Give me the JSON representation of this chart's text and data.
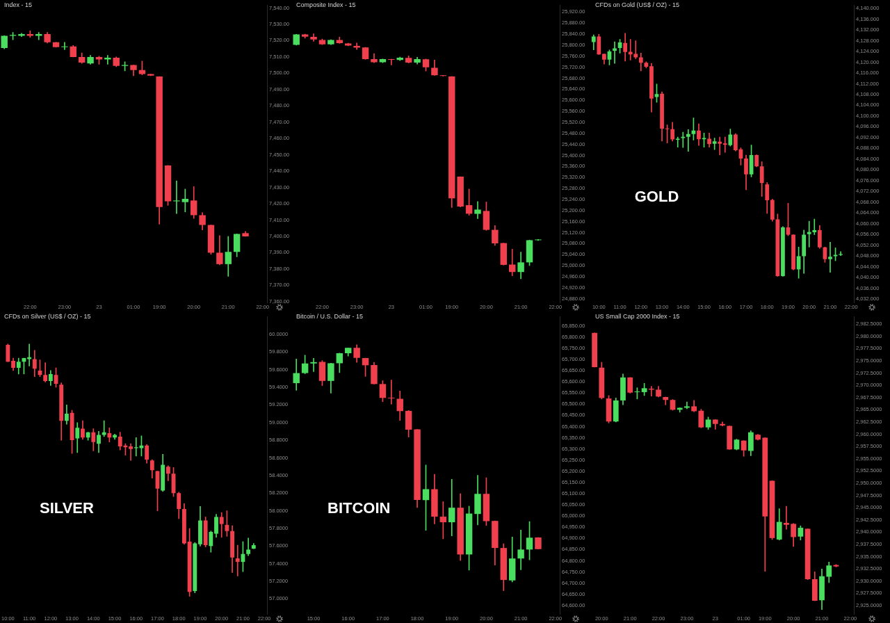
{
  "chart_data": [
    {
      "type": "candlestick",
      "title": "Index - 15",
      "categories": [
        null,
        null,
        null,
        "22:00",
        null,
        null,
        null,
        "23:00",
        null,
        null,
        null,
        "23",
        null,
        null,
        null,
        "01:00",
        null,
        null,
        "19:00",
        null,
        null,
        null,
        "20:00",
        null,
        null,
        null,
        "21:00",
        null,
        null,
        null,
        "22:00"
      ],
      "ohlc": [
        [
          7515.5,
          7523,
          7515,
          7523
        ],
        [
          7523,
          7525,
          7520.5,
          7523.5
        ],
        [
          7523,
          7524.5,
          7522.5,
          7524
        ],
        [
          7524,
          7526,
          7522,
          7523
        ],
        [
          7523,
          7525,
          7520.5,
          7524
        ],
        [
          7524,
          7525,
          7518.5,
          7519
        ],
        [
          7519,
          7519,
          7516,
          7516
        ],
        [
          7516,
          7519,
          7514.5,
          7516.5
        ],
        [
          7516.5,
          7517,
          7510,
          7510
        ],
        [
          7510,
          7512.5,
          7506,
          7506.5
        ],
        [
          7506,
          7511,
          7505.5,
          7510
        ],
        [
          7510,
          7510.5,
          7505.5,
          7508.5
        ],
        [
          7508.5,
          7511,
          7505.5,
          7509.5
        ],
        [
          7509.5,
          7510,
          7504,
          7504.5
        ],
        [
          7504.5,
          7507,
          7501.5,
          7505
        ],
        [
          7505,
          7505,
          7498.5,
          7502
        ],
        [
          7502,
          7507.5,
          7499,
          7499.5
        ],
        [
          7499.5,
          7499.5,
          7498.5,
          7498.5
        ],
        [
          7498,
          7498,
          7407.5,
          7418
        ],
        [
          7443.5,
          7443.5,
          7419,
          7421.5
        ],
        [
          7421.5,
          7434,
          7414,
          7422
        ],
        [
          7421,
          7429,
          7415,
          7423
        ],
        [
          7422,
          7430.5,
          7411,
          7413
        ],
        [
          7413,
          7414.5,
          7404,
          7407
        ],
        [
          7407,
          7407,
          7389,
          7390
        ],
        [
          7390,
          7400.5,
          7382.5,
          7383
        ],
        [
          7383,
          7400,
          7375.5,
          7390.5
        ],
        [
          7390.5,
          7401.5,
          7387.5,
          7401.5
        ],
        [
          7402,
          7403,
          7400,
          7400
        ],
        null,
        null
      ],
      "colors": [
        "#4bdd5f",
        "#4bdd5f",
        "#4bdd5f",
        "#f0404e",
        "#4bdd5f",
        "#f0404e",
        "#f0404e",
        "#4bdd5f",
        "#f0404e",
        "#f0404e",
        "#4bdd5f",
        "#f0404e",
        "#4bdd5f",
        "#f0404e",
        "#4bdd5f",
        "#f0404e",
        "#f0404e",
        "#f0404e",
        "#f0404e",
        "#f0404e",
        "#4bdd5f",
        "#4bdd5f",
        "#f0404e",
        "#f0404e",
        "#f0404e",
        "#f0404e",
        "#4bdd5f",
        "#4bdd5f",
        "#f0404e",
        null,
        null
      ],
      "ylim": [
        7359.5,
        7541.7
      ],
      "yticks": [
        {
          "value": 7360,
          "label": "7,360.00"
        },
        {
          "value": 7370,
          "label": "7,370.00"
        },
        {
          "value": 7380,
          "label": "7,380.00"
        },
        {
          "value": 7390,
          "label": "7,390.00"
        },
        {
          "value": 7400,
          "label": "7,400.00"
        },
        {
          "value": 7410,
          "label": "7,410.00"
        },
        {
          "value": 7420,
          "label": "7,420.00"
        },
        {
          "value": 7430,
          "label": "7,430.00"
        },
        {
          "value": 7440,
          "label": "7,440.00"
        },
        {
          "value": 7450,
          "label": "7,450.00"
        },
        {
          "value": 7460,
          "label": "7,460.00"
        },
        {
          "value": 7470,
          "label": "7,470.00"
        },
        {
          "value": 7480,
          "label": "7,480.00"
        },
        {
          "value": 7490,
          "label": "7,490.00"
        },
        {
          "value": 7500,
          "label": "7,500.00"
        },
        {
          "value": 7510,
          "label": "7,510.00"
        },
        {
          "value": 7520,
          "label": "7,520.00"
        },
        {
          "value": 7530,
          "label": "7,530.00"
        },
        {
          "value": 7540,
          "label": "7,540.00"
        }
      ]
    },
    {
      "type": "candlestick",
      "title": "Composite Index - 15",
      "categories": [
        null,
        null,
        null,
        "22:00",
        null,
        null,
        null,
        "23:00",
        null,
        null,
        null,
        "23",
        null,
        null,
        null,
        "01:00",
        null,
        null,
        "19:00",
        null,
        null,
        null,
        "20:00",
        null,
        null,
        null,
        "21:00",
        null,
        null,
        null,
        "22:00"
      ],
      "ohlc": [
        [
          25801,
          25839,
          25800,
          25839
        ],
        [
          25839,
          25840,
          25825,
          25830.5
        ],
        [
          25830,
          25841,
          25814,
          25820.5
        ],
        [
          25819,
          25822,
          25802,
          25803
        ],
        [
          25803,
          25820,
          25802,
          25819
        ],
        [
          25819,
          25829,
          25806,
          25807.5
        ],
        [
          25806,
          25807,
          25797.5,
          25798.5
        ],
        [
          25797.5,
          25808,
          25784,
          25791
        ],
        [
          25791.5,
          25792,
          25748,
          25749.5
        ],
        [
          25749.5,
          25769,
          25736,
          25738
        ],
        [
          25738,
          25750,
          25736,
          25749.5
        ],
        [
          25748,
          25749,
          25728,
          25747
        ],
        [
          25746,
          25757,
          25744,
          25754.5
        ],
        [
          25753.5,
          25761,
          25735,
          25737
        ],
        [
          25737,
          25756,
          25731,
          25749.5
        ],
        [
          25749,
          25750,
          25706,
          25719.5
        ],
        [
          25718,
          25746,
          25690,
          25690.5
        ],
        [
          25690,
          25690,
          25688,
          25688
        ],
        [
          25686.5,
          25687,
          25211,
          25244
        ],
        [
          25323,
          25323,
          25213,
          25214.5
        ],
        [
          25219.5,
          25278,
          25183,
          25188.5
        ],
        [
          25188,
          25232.5,
          25170.5,
          25203.5
        ],
        [
          25198.5,
          25231,
          25128,
          25130
        ],
        [
          25130,
          25145.5,
          25073.5,
          25081
        ],
        [
          25082,
          25082,
          25002,
          25003
        ],
        [
          25004,
          25060,
          24963.5,
          24977
        ],
        [
          24977,
          25049.5,
          24952.5,
          25012
        ],
        [
          25012,
          25093,
          25000.5,
          25092.5
        ],
        [
          25092.5,
          25095,
          25091,
          25094
        ],
        null,
        null
      ],
      "colors": [
        "#4bdd5f",
        "#f0404e",
        "#f0404e",
        "#f0404e",
        "#4bdd5f",
        "#f0404e",
        "#f0404e",
        "#f0404e",
        "#f0404e",
        "#f0404e",
        "#4bdd5f",
        "#f0404e",
        "#4bdd5f",
        "#f0404e",
        "#4bdd5f",
        "#f0404e",
        "#f0404e",
        "#f0404e",
        "#f0404e",
        "#f0404e",
        "#f0404e",
        "#4bdd5f",
        "#f0404e",
        "#f0404e",
        "#f0404e",
        "#f0404e",
        "#4bdd5f",
        "#4bdd5f",
        "#4bdd5f",
        null,
        null
      ],
      "ylim": [
        24866.6,
        25944.8
      ],
      "yticks": [
        {
          "value": 24880,
          "label": "24,880.00"
        },
        {
          "value": 24920,
          "label": "24,920.00"
        },
        {
          "value": 24960,
          "label": "24,960.00"
        },
        {
          "value": 25000,
          "label": "25,000.00"
        },
        {
          "value": 25040,
          "label": "25,040.00"
        },
        {
          "value": 25080,
          "label": "25,080.00"
        },
        {
          "value": 25120,
          "label": "25,120.00"
        },
        {
          "value": 25160,
          "label": "25,160.00"
        },
        {
          "value": 25200,
          "label": "25,200.00"
        },
        {
          "value": 25240,
          "label": "25,240.00"
        },
        {
          "value": 25280,
          "label": "25,280.00"
        },
        {
          "value": 25320,
          "label": "25,320.00"
        },
        {
          "value": 25360,
          "label": "25,360.00"
        },
        {
          "value": 25400,
          "label": "25,400.00"
        },
        {
          "value": 25440,
          "label": "25,440.00"
        },
        {
          "value": 25480,
          "label": "25,480.00"
        },
        {
          "value": 25520,
          "label": "25,520.00"
        },
        {
          "value": 25560,
          "label": "25,560.00"
        },
        {
          "value": 25600,
          "label": "25,600.00"
        },
        {
          "value": 25640,
          "label": "25,640.00"
        },
        {
          "value": 25680,
          "label": "25,680.00"
        },
        {
          "value": 25720,
          "label": "25,720.00"
        },
        {
          "value": 25760,
          "label": "25,760.00"
        },
        {
          "value": 25800,
          "label": "25,800.00"
        },
        {
          "value": 25840,
          "label": "25,840.00"
        },
        {
          "value": 25880,
          "label": "25,880.00"
        },
        {
          "value": 25920,
          "label": "25,920.00"
        }
      ]
    },
    {
      "type": "candlestick",
      "title": "CFDs on Gold (US$ / OZ) - 15",
      "annotations": [
        "GOLD"
      ],
      "categories": [
        null,
        "10:00",
        null,
        null,
        null,
        "11:00",
        null,
        null,
        null,
        "12:00",
        null,
        null,
        null,
        "13:00",
        null,
        null,
        null,
        "14:00",
        null,
        null,
        null,
        "15:00",
        null,
        null,
        null,
        "16:00",
        null,
        null,
        null,
        "17:00",
        null,
        null,
        null,
        "18:00",
        null,
        null,
        null,
        "19:00",
        null,
        null,
        null,
        "20:00",
        null,
        null,
        null,
        "21:00",
        null,
        null,
        null,
        "22:00"
      ],
      "ohlc": [
        [
          4127.5,
          4130.2,
          4124.6,
          4129.6
        ],
        [
          4129.6,
          4130.4,
          4122.9,
          4122.9
        ],
        [
          4123.1,
          4123.1,
          4119.3,
          4121.0
        ],
        [
          4121.0,
          4124.6,
          4119.0,
          4124.0
        ],
        [
          4124.3,
          4127.6,
          4119.6,
          4125.2
        ],
        [
          4125.3,
          4128.5,
          4123.4,
          4127.4
        ],
        [
          4127.2,
          4130.8,
          4120.4,
          4123.8
        ],
        [
          4123.9,
          4128.5,
          4120.8,
          4122.9
        ],
        [
          4123.1,
          4128.0,
          4121.3,
          4121.8
        ],
        [
          4121.8,
          4123.4,
          4116.8,
          4119.8
        ],
        [
          4119.8,
          4120.2,
          4117.9,
          4118.3
        ],
        [
          4118.5,
          4119.6,
          4101.5,
          4106.5
        ],
        [
          4107.1,
          4111.9,
          4105.1,
          4108.2
        ],
        [
          4108.3,
          4109.0,
          4090.7,
          4095.3
        ],
        [
          4095.3,
          4096.7,
          4090.0,
          4095.1
        ],
        [
          4095.1,
          4097.7,
          4090.7,
          4091.3
        ],
        [
          4091.2,
          4092.2,
          4088.4,
          4091.6
        ],
        [
          4091.8,
          4094.0,
          4088.3,
          4092.3
        ],
        [
          4092.3,
          4095.0,
          4086.9,
          4093.3
        ],
        [
          4093.3,
          4099.3,
          4091.1,
          4094.6
        ],
        [
          4094.6,
          4097.1,
          4089.1,
          4091.4
        ],
        [
          4091.4,
          4093.7,
          4088.4,
          4091.8
        ],
        [
          4091.6,
          4093.7,
          4088.4,
          4089.6
        ],
        [
          4089.7,
          4091.8,
          4087.5,
          4090.6
        ],
        [
          4090.5,
          4092.2,
          4085.6,
          4089.7
        ],
        [
          4089.8,
          4092.2,
          4086.5,
          4089.3
        ],
        [
          4089.2,
          4095.2,
          4088.8,
          4093.1
        ],
        [
          4093.1,
          4093.5,
          4087.0,
          4087.3
        ],
        [
          4087.6,
          4088.2,
          4081.8,
          4084.2
        ],
        [
          4084.2,
          4085.5,
          4072.6,
          4078.3
        ],
        [
          4078.3,
          4089.2,
          4077.4,
          4085.5
        ],
        [
          4085.5,
          4085.6,
          4081.1,
          4081.3
        ],
        [
          4081.3,
          4083.0,
          4070.1,
          4075.1
        ],
        [
          4074.6,
          4075.3,
          4063.8,
          4068.7
        ],
        [
          4068.8,
          4069.1,
          4060.9,
          4061.5
        ],
        [
          4061.6,
          4063.6,
          4040.4,
          4040.5
        ],
        [
          4040.5,
          4058.9,
          4040.4,
          4058.6
        ],
        [
          4058.6,
          4067.6,
          4055.5,
          4055.9
        ],
        [
          4055.9,
          4055.9,
          4042.8,
          4043.0
        ],
        [
          4043.0,
          4051.3,
          4039.7,
          4047.9
        ],
        [
          4047.9,
          4057.6,
          4041.5,
          4055.9
        ],
        [
          4056.1,
          4060.9,
          4051.3,
          4056.9
        ],
        [
          4056.8,
          4061.7,
          4055.9,
          4057.6
        ],
        [
          4057.6,
          4059.3,
          4050.8,
          4051.2
        ],
        [
          4051.2,
          4051.3,
          4045.6,
          4046.8
        ],
        [
          4046.8,
          4053.1,
          4041.9,
          4047.7
        ],
        [
          4047.9,
          4051.0,
          4046.2,
          4048.4
        ],
        [
          4048.4,
          4049.6,
          4048.1,
          4048.7
        ],
        null,
        null
      ],
      "colors": [
        "#4bdd5f",
        "#f0404e",
        "#f0404e",
        "#4bdd5f",
        "#4bdd5f",
        "#4bdd5f",
        "#f0404e",
        "#f0404e",
        "#f0404e",
        "#f0404e",
        "#f0404e",
        "#f0404e",
        "#4bdd5f",
        "#f0404e",
        "#f0404e",
        "#f0404e",
        "#4bdd5f",
        "#4bdd5f",
        "#4bdd5f",
        "#4bdd5f",
        "#f0404e",
        "#4bdd5f",
        "#f0404e",
        "#4bdd5f",
        "#f0404e",
        "#f0404e",
        "#4bdd5f",
        "#f0404e",
        "#f0404e",
        "#f0404e",
        "#4bdd5f",
        "#f0404e",
        "#f0404e",
        "#f0404e",
        "#f0404e",
        "#f0404e",
        "#4bdd5f",
        "#f0404e",
        "#f0404e",
        "#4bdd5f",
        "#4bdd5f",
        "#4bdd5f",
        "#4bdd5f",
        "#f0404e",
        "#f0404e",
        "#4bdd5f",
        "#4bdd5f",
        "#4bdd5f",
        null,
        null
      ],
      "ylim": [
        4030.7,
        4141.2
      ],
      "yticks": [
        {
          "value": 4032,
          "label": "4,032.000"
        },
        {
          "value": 4036,
          "label": "4,036.000"
        },
        {
          "value": 4040,
          "label": "4,040.000"
        },
        {
          "value": 4044,
          "label": "4,044.000"
        },
        {
          "value": 4048,
          "label": "4,048.000"
        },
        {
          "value": 4052,
          "label": "4,052.000"
        },
        {
          "value": 4056,
          "label": "4,056.000"
        },
        {
          "value": 4060,
          "label": "4,060.000"
        },
        {
          "value": 4064,
          "label": "4,064.000"
        },
        {
          "value": 4068,
          "label": "4,068.000"
        },
        {
          "value": 4072,
          "label": "4,072.000"
        },
        {
          "value": 4076,
          "label": "4,076.000"
        },
        {
          "value": 4080,
          "label": "4,080.000"
        },
        {
          "value": 4084,
          "label": "4,084.000"
        },
        {
          "value": 4088,
          "label": "4,088.000"
        },
        {
          "value": 4092,
          "label": "4,092.000"
        },
        {
          "value": 4096,
          "label": "4,096.000"
        },
        {
          "value": 4100,
          "label": "4,100.000"
        },
        {
          "value": 4104,
          "label": "4,104.000"
        },
        {
          "value": 4108,
          "label": "4,108.000"
        },
        {
          "value": 4112,
          "label": "4,112.000"
        },
        {
          "value": 4116,
          "label": "4,116.000"
        },
        {
          "value": 4120,
          "label": "4,120.000"
        },
        {
          "value": 4124,
          "label": "4,124.000"
        },
        {
          "value": 4128,
          "label": "4,128.000"
        },
        {
          "value": 4132,
          "label": "4,132.000"
        },
        {
          "value": 4136,
          "label": "4,136.000"
        },
        {
          "value": 4140,
          "label": "4,140.000"
        }
      ]
    },
    {
      "type": "candlestick",
      "title": "CFDs on Silver (US$ / OZ) - 15",
      "annotations": [
        "SILVER"
      ],
      "categories": [
        "10:00",
        null,
        null,
        null,
        "11:00",
        null,
        null,
        null,
        "12:00",
        null,
        null,
        null,
        "13:00",
        null,
        null,
        null,
        "14:00",
        null,
        null,
        null,
        "15:00",
        null,
        null,
        null,
        "16:00",
        null,
        null,
        null,
        "17:00",
        null,
        null,
        null,
        "18:00",
        null,
        null,
        null,
        "19:00",
        null,
        null,
        null,
        "20:00",
        null,
        null,
        null,
        "21:00",
        null,
        null,
        null,
        "22:00"
      ],
      "ohlc": [
        [
          59.88,
          59.89,
          59.69,
          59.69
        ],
        [
          59.7,
          59.73,
          59.59,
          59.62
        ],
        [
          59.62,
          59.73,
          59.55,
          59.69
        ],
        [
          59.69,
          59.73,
          59.55,
          59.73
        ],
        [
          59.72,
          59.89,
          59.64,
          59.74
        ],
        [
          59.72,
          59.82,
          59.52,
          59.61
        ],
        [
          59.59,
          59.71,
          59.52,
          59.54
        ],
        [
          59.54,
          59.68,
          59.46,
          59.47
        ],
        [
          59.47,
          59.59,
          59.42,
          59.55
        ],
        [
          59.54,
          59.62,
          59.4,
          59.44
        ],
        [
          59.43,
          59.45,
          58.8,
          59.02
        ],
        [
          59.02,
          59.2,
          58.98,
          59.1
        ],
        [
          59.11,
          59.14,
          58.65,
          58.8
        ],
        [
          58.82,
          59.0,
          58.66,
          58.94
        ],
        [
          58.93,
          59.02,
          58.81,
          58.83
        ],
        [
          58.83,
          58.89,
          58.8,
          58.89
        ],
        [
          58.89,
          58.93,
          58.68,
          58.78
        ],
        [
          58.76,
          58.9,
          58.66,
          58.86
        ],
        [
          58.86,
          59.02,
          58.84,
          58.89
        ],
        [
          58.88,
          58.94,
          58.78,
          58.83
        ],
        [
          58.83,
          58.87,
          58.81,
          58.86
        ],
        [
          58.84,
          58.89,
          58.69,
          58.73
        ],
        [
          58.74,
          58.76,
          58.63,
          58.72
        ],
        [
          58.73,
          58.76,
          58.57,
          58.7
        ],
        [
          58.71,
          58.83,
          58.62,
          58.72
        ],
        [
          58.71,
          58.85,
          58.62,
          58.74
        ],
        [
          58.74,
          58.75,
          58.54,
          58.58
        ],
        [
          58.57,
          58.58,
          58.37,
          58.46
        ],
        [
          58.45,
          58.45,
          58.0,
          58.25
        ],
        [
          58.23,
          58.64,
          58.22,
          58.52
        ],
        [
          58.5,
          58.51,
          58.34,
          58.42
        ],
        [
          58.42,
          58.49,
          58.16,
          58.2
        ],
        [
          58.2,
          58.21,
          57.91,
          58.02
        ],
        [
          58.02,
          58.08,
          57.62,
          57.63
        ],
        [
          57.65,
          57.8,
          57.03,
          57.08
        ],
        [
          57.09,
          57.64,
          57.07,
          57.63
        ],
        [
          57.62,
          58.05,
          57.6,
          57.89
        ],
        [
          57.89,
          57.93,
          57.59,
          57.61
        ],
        [
          57.6,
          57.77,
          57.53,
          57.76
        ],
        [
          57.74,
          57.96,
          57.7,
          57.93
        ],
        [
          57.93,
          57.98,
          57.7,
          57.85
        ],
        [
          57.84,
          58.0,
          57.71,
          57.77
        ],
        [
          57.77,
          57.83,
          57.3,
          57.47
        ],
        [
          57.46,
          57.61,
          57.26,
          57.42
        ],
        [
          57.42,
          57.65,
          57.31,
          57.51
        ],
        [
          57.51,
          57.69,
          57.49,
          57.56
        ],
        [
          57.57,
          57.63,
          57.57,
          57.61
        ],
        null,
        null
      ],
      "colors": [
        "#f0404e",
        "#f0404e",
        "#4bdd5f",
        "#4bdd5f",
        "#4bdd5f",
        "#f0404e",
        "#f0404e",
        "#f0404e",
        "#4bdd5f",
        "#f0404e",
        "#f0404e",
        "#4bdd5f",
        "#f0404e",
        "#4bdd5f",
        "#f0404e",
        "#4bdd5f",
        "#f0404e",
        "#4bdd5f",
        "#4bdd5f",
        "#f0404e",
        "#4bdd5f",
        "#f0404e",
        "#f0404e",
        "#f0404e",
        "#4bdd5f",
        "#4bdd5f",
        "#f0404e",
        "#f0404e",
        "#f0404e",
        "#4bdd5f",
        "#f0404e",
        "#f0404e",
        "#f0404e",
        "#f0404e",
        "#f0404e",
        "#4bdd5f",
        "#4bdd5f",
        "#f0404e",
        "#4bdd5f",
        "#4bdd5f",
        "#f0404e",
        "#f0404e",
        "#f0404e",
        "#f0404e",
        "#4bdd5f",
        "#4bdd5f",
        "#4bdd5f",
        null,
        null
      ],
      "ylim": [
        56.83,
        60.2
      ],
      "yticks": [
        {
          "value": 57,
          "label": "57.0000"
        },
        {
          "value": 57.2,
          "label": "57.2000"
        },
        {
          "value": 57.4,
          "label": "57.4000"
        },
        {
          "value": 57.6,
          "label": "57.6000"
        },
        {
          "value": 57.8,
          "label": "57.8000"
        },
        {
          "value": 58,
          "label": "58.0000"
        },
        {
          "value": 58.2,
          "label": "58.2000"
        },
        {
          "value": 58.4,
          "label": "58.4000"
        },
        {
          "value": 58.6,
          "label": "58.6000"
        },
        {
          "value": 58.8,
          "label": "58.8000"
        },
        {
          "value": 59,
          "label": "59.0000"
        },
        {
          "value": 59.2,
          "label": "59.2000"
        },
        {
          "value": 59.4,
          "label": "59.4000"
        },
        {
          "value": 59.6,
          "label": "59.6000"
        },
        {
          "value": 59.8,
          "label": "59.8000"
        },
        {
          "value": 60,
          "label": "60.0000"
        }
      ]
    },
    {
      "type": "candlestick",
      "title": "Bitcoin / U.S. Dollar - 15",
      "annotations": [
        "BITCOIN"
      ],
      "categories": [
        null,
        null,
        "15:00",
        null,
        null,
        null,
        "16:00",
        null,
        null,
        null,
        "17:00",
        null,
        null,
        null,
        "18:00",
        null,
        null,
        null,
        "19:00",
        null,
        null,
        null,
        "20:00",
        null,
        null,
        null,
        "21:00",
        null,
        null,
        null,
        "22:00"
      ],
      "ohlc": [
        [
          65594,
          65702,
          65562,
          65639
        ],
        [
          65639,
          65719,
          65636,
          65682
        ],
        [
          65682,
          65705,
          65646,
          65688
        ],
        [
          65689,
          65695,
          65583,
          65604
        ],
        [
          65604,
          65683,
          65549,
          65683
        ],
        [
          65683,
          65728,
          65641,
          65728
        ],
        [
          65728,
          65752,
          65715,
          65752
        ],
        [
          65752,
          65766,
          65687,
          65707
        ],
        [
          65706,
          65706,
          65624,
          65674
        ],
        [
          65675,
          65687,
          65590,
          65590
        ],
        [
          65590,
          65605,
          65511,
          65528
        ],
        [
          65529,
          65608,
          65500,
          65526
        ],
        [
          65524,
          65559,
          65427,
          65469
        ],
        [
          65470,
          65472,
          65353,
          65386
        ],
        [
          65387,
          65387,
          65038,
          65072
        ],
        [
          65071,
          65228,
          64936,
          65120
        ],
        [
          65120,
          65187,
          64965,
          64997
        ],
        [
          64997,
          65064,
          64898,
          64972
        ],
        [
          64972,
          65164,
          64911,
          65037
        ],
        [
          65037,
          65100,
          64801,
          64828
        ],
        [
          64828,
          65044,
          64758,
          65011
        ],
        [
          65009,
          65182,
          64960,
          65099
        ],
        [
          65099,
          65171,
          64958,
          64977
        ],
        [
          64978,
          64978,
          64781,
          64857
        ],
        [
          64857,
          64876,
          64666,
          64714
        ],
        [
          64712,
          64906,
          64705,
          64810
        ],
        [
          64810,
          64937,
          64760,
          64850
        ],
        [
          64850,
          64975,
          64804,
          64903
        ],
        [
          64904,
          64904,
          64852,
          64852
        ],
        null,
        null
      ],
      "colors": [
        "#4bdd5f",
        "#4bdd5f",
        "#4bdd5f",
        "#f0404e",
        "#4bdd5f",
        "#4bdd5f",
        "#4bdd5f",
        "#f0404e",
        "#f0404e",
        "#f0404e",
        "#f0404e",
        "#f0404e",
        "#f0404e",
        "#f0404e",
        "#f0404e",
        "#4bdd5f",
        "#f0404e",
        "#f0404e",
        "#4bdd5f",
        "#f0404e",
        "#4bdd5f",
        "#4bdd5f",
        "#f0404e",
        "#f0404e",
        "#f0404e",
        "#4bdd5f",
        "#4bdd5f",
        "#4bdd5f",
        "#f0404e",
        null,
        null
      ],
      "ylim": [
        64562,
        65891
      ],
      "yticks": [
        {
          "value": 64600,
          "label": "64,600.00"
        },
        {
          "value": 64650,
          "label": "64,650.00"
        },
        {
          "value": 64700,
          "label": "64,700.00"
        },
        {
          "value": 64750,
          "label": "64,750.00"
        },
        {
          "value": 64800,
          "label": "64,800.00"
        },
        {
          "value": 64850,
          "label": "64,850.00"
        },
        {
          "value": 64900,
          "label": "64,900.00"
        },
        {
          "value": 64950,
          "label": "64,950.00"
        },
        {
          "value": 65000,
          "label": "65,000.00"
        },
        {
          "value": 65050,
          "label": "65,050.00"
        },
        {
          "value": 65100,
          "label": "65,100.00"
        },
        {
          "value": 65150,
          "label": "65,150.00"
        },
        {
          "value": 65200,
          "label": "65,200.00"
        },
        {
          "value": 65250,
          "label": "65,250.00"
        },
        {
          "value": 65300,
          "label": "65,300.00"
        },
        {
          "value": 65350,
          "label": "65,350.00"
        },
        {
          "value": 65400,
          "label": "65,400.00"
        },
        {
          "value": 65450,
          "label": "65,450.00"
        },
        {
          "value": 65500,
          "label": "65,500.00"
        },
        {
          "value": 65550,
          "label": "65,550.00"
        },
        {
          "value": 65600,
          "label": "65,600.00"
        },
        {
          "value": 65650,
          "label": "65,650.00"
        },
        {
          "value": 65700,
          "label": "65,700.00"
        },
        {
          "value": 65750,
          "label": "65,750.00"
        },
        {
          "value": 65800,
          "label": "65,800.00"
        },
        {
          "value": 65850,
          "label": "65,850.00"
        }
      ]
    },
    {
      "type": "candlestick",
      "title": "US Small Cap 2000 Index - 15",
      "categories": [
        null,
        "20:00",
        null,
        null,
        null,
        "21:00",
        null,
        null,
        null,
        "22:00",
        null,
        null,
        null,
        "23:00",
        null,
        null,
        null,
        "23",
        null,
        null,
        null,
        "01:00",
        null,
        null,
        "19:00",
        null,
        null,
        null,
        "20:00",
        null,
        null,
        null,
        "21:00",
        null,
        null,
        null,
        "22:00"
      ],
      "ohlc": [
        [
          2980.7,
          2980.7,
          2973.7,
          2973.7
        ],
        [
          2973.6,
          2974.7,
          2967.2,
          2967.4
        ],
        [
          2967.3,
          2967.9,
          2962.3,
          2962.6
        ],
        [
          2962.6,
          2967.4,
          2962.5,
          2966.9
        ],
        [
          2966.9,
          2972.3,
          2966.0,
          2971.6
        ],
        [
          2971.6,
          2971.6,
          2968.4,
          2968.5
        ],
        [
          2968.6,
          2969.5,
          2967.2,
          2968.7
        ],
        [
          2968.6,
          2970.4,
          2967.9,
          2969.4
        ],
        [
          2969.3,
          2969.8,
          2967.8,
          2969.1
        ],
        [
          2969.1,
          2969.8,
          2967.6,
          2967.7
        ],
        [
          2967.6,
          2967.6,
          2966.0,
          2967.0
        ],
        [
          2967.0,
          2967.1,
          2964.9,
          2965.0
        ],
        [
          2965.0,
          2965.4,
          2964.5,
          2965.4
        ],
        [
          2965.4,
          2966.6,
          2965.2,
          2965.7
        ],
        [
          2965.7,
          2966.9,
          2964.6,
          2964.7
        ],
        [
          2964.8,
          2965.1,
          2961.3,
          2961.4
        ],
        [
          2961.4,
          2963.5,
          2961.0,
          2963.0
        ],
        [
          2963.0,
          2963.0,
          2961.0,
          2962.1
        ],
        [
          2962.1,
          2962.5,
          2961.7,
          2961.8
        ],
        [
          2961.7,
          2961.7,
          2956.9,
          2956.9
        ],
        [
          2956.9,
          2959.0,
          2956.8,
          2958.9
        ],
        [
          2958.7,
          2958.7,
          2955.5,
          2956.7
        ],
        [
          2956.6,
          2960.7,
          2955.6,
          2960.4
        ],
        [
          2959.9,
          2960.0,
          2958.8,
          2958.9
        ],
        [
          2959.3,
          2959.3,
          2932.0,
          2943.2
        ],
        [
          2950.5,
          2950.5,
          2938.5,
          2938.8
        ],
        [
          2938.5,
          2944.8,
          2938.4,
          2942.1
        ],
        [
          2941.9,
          2945.3,
          2940.6,
          2941.5
        ],
        [
          2941.7,
          2941.8,
          2937.1,
          2939.0
        ],
        [
          2939.1,
          2941.3,
          2938.4,
          2940.9
        ],
        [
          2940.7,
          2940.7,
          2930.3,
          2930.4
        ],
        [
          2930.4,
          2931.9,
          2926.0,
          2926.0
        ],
        [
          2926.1,
          2932.5,
          2924.2,
          2931.0
        ],
        [
          2930.9,
          2933.9,
          2929.7,
          2933.2
        ],
        [
          2933.3,
          2933.4,
          2932.9,
          2933.0
        ],
        null,
        null
      ],
      "colors": [
        "#f0404e",
        "#f0404e",
        "#f0404e",
        "#4bdd5f",
        "#4bdd5f",
        "#f0404e",
        "#4bdd5f",
        "#4bdd5f",
        "#f0404e",
        "#f0404e",
        "#f0404e",
        "#f0404e",
        "#4bdd5f",
        "#4bdd5f",
        "#f0404e",
        "#f0404e",
        "#4bdd5f",
        "#f0404e",
        "#f0404e",
        "#f0404e",
        "#4bdd5f",
        "#f0404e",
        "#4bdd5f",
        "#f0404e",
        "#f0404e",
        "#f0404e",
        "#4bdd5f",
        "#f0404e",
        "#f0404e",
        "#4bdd5f",
        "#f0404e",
        "#f0404e",
        "#4bdd5f",
        "#4bdd5f",
        "#f0404e",
        null,
        null
      ],
      "ylim": [
        2923.3,
        2984
      ],
      "yticks": [
        {
          "value": 2925,
          "label": "2,925.0000"
        },
        {
          "value": 2927.5,
          "label": "2,927.5000"
        },
        {
          "value": 2930,
          "label": "2,930.0000"
        },
        {
          "value": 2932.5,
          "label": "2,932.5000"
        },
        {
          "value": 2935,
          "label": "2,935.0000"
        },
        {
          "value": 2937.5,
          "label": "2,937.5000"
        },
        {
          "value": 2940,
          "label": "2,940.0000"
        },
        {
          "value": 2942.5,
          "label": "2,942.5000"
        },
        {
          "value": 2945,
          "label": "2,945.0000"
        },
        {
          "value": 2947.5,
          "label": "2,947.5000"
        },
        {
          "value": 2950,
          "label": "2,950.0000"
        },
        {
          "value": 2952.5,
          "label": "2,952.5000"
        },
        {
          "value": 2955,
          "label": "2,955.0000"
        },
        {
          "value": 2957.5,
          "label": "2,957.5000"
        },
        {
          "value": 2960,
          "label": "2,960.0000"
        },
        {
          "value": 2962.5,
          "label": "2,962.5000"
        },
        {
          "value": 2965,
          "label": "2,965.0000"
        },
        {
          "value": 2967.5,
          "label": "2,967.5000"
        },
        {
          "value": 2970,
          "label": "2,970.0000"
        },
        {
          "value": 2972.5,
          "label": "2,972.5000"
        },
        {
          "value": 2975,
          "label": "2,975.0000"
        },
        {
          "value": 2977.5,
          "label": "2,977.5000"
        },
        {
          "value": 2980,
          "label": "2,980.0000"
        },
        {
          "value": 2982.5,
          "label": "2,982.5000"
        }
      ]
    }
  ]
}
